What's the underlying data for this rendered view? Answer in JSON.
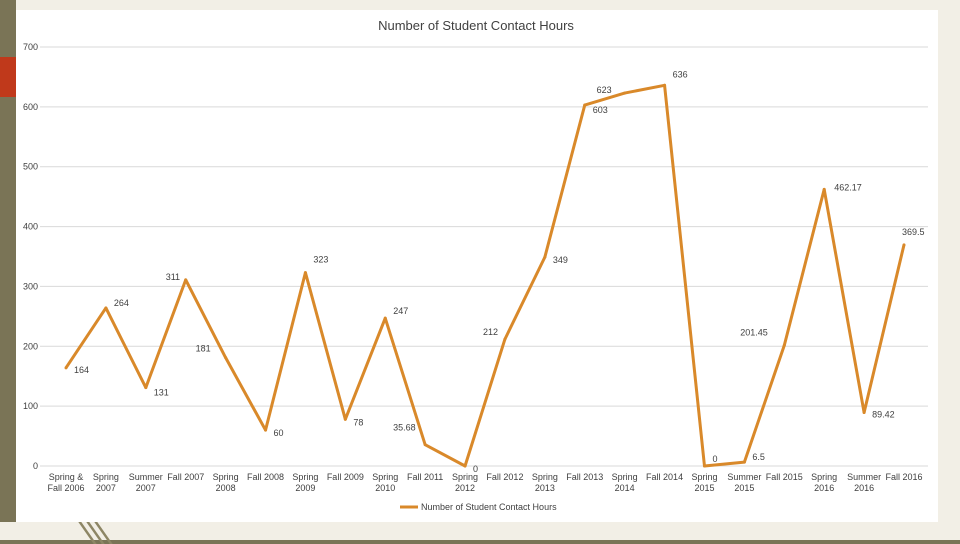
{
  "chart_data": {
    "type": "line",
    "title": "Number of Student Contact Hours",
    "xlabel": "",
    "ylabel": "",
    "ylim": [
      0,
      700
    ],
    "yticks": [
      0,
      100,
      200,
      300,
      400,
      500,
      600,
      700
    ],
    "grid": true,
    "legend_position": "bottom",
    "categories": [
      "Spring & Fall 2006",
      "Spring 2007",
      "Summer 2007",
      "Fall 2007",
      "Spring 2008",
      "Fall 2008",
      "Spring 2009",
      "Fall 2009",
      "Spring 2010",
      "Fall 2011",
      "Spring 2012",
      "Fall 2012",
      "Spring 2013",
      "Fall 2013",
      "Spring 2014",
      "Fall 2014",
      "Spring 2015",
      "Summer 2015",
      "Fall 2015",
      "Spring 2016",
      "Summer 2016",
      "Fall 2016"
    ],
    "category_label_lines": [
      [
        "Spring &",
        "Fall 2006"
      ],
      [
        "Spring",
        "2007"
      ],
      [
        "Summer",
        "2007"
      ],
      [
        "Fall 2007"
      ],
      [
        "Spring",
        "2008"
      ],
      [
        "Fall 2008"
      ],
      [
        "Spring",
        "2009"
      ],
      [
        "Fall 2009"
      ],
      [
        "Spring",
        "2010"
      ],
      [
        "Fall 2011"
      ],
      [
        "Spring",
        "2012"
      ],
      [
        "Fall 2012"
      ],
      [
        "Spring",
        "2013"
      ],
      [
        "Fall 2013"
      ],
      [
        "Spring",
        "2014"
      ],
      [
        "Fall 2014"
      ],
      [
        "Spring",
        "2015"
      ],
      [
        "Summer",
        "2015"
      ],
      [
        "Fall 2015"
      ],
      [
        "Spring",
        "2016"
      ],
      [
        "Summer",
        "2016"
      ],
      [
        "Fall 2016"
      ]
    ],
    "series": [
      {
        "name": "Number of Student Contact Hours",
        "color": "#d9892a",
        "values": [
          164,
          264,
          131,
          311,
          181,
          60,
          323,
          78,
          247,
          35.68,
          0,
          212,
          349,
          603,
          623,
          636,
          0,
          6.5,
          201.45,
          462.17,
          89.42,
          369.5
        ],
        "data_labels": [
          "164",
          "264",
          "131",
          "311",
          "181",
          "60",
          "323",
          "78",
          "247",
          "35.68",
          "0",
          "212",
          "349",
          "603",
          "623",
          "636",
          "0",
          "6.5",
          "201.45",
          "462.17",
          "89.42",
          "369.5"
        ]
      }
    ]
  }
}
